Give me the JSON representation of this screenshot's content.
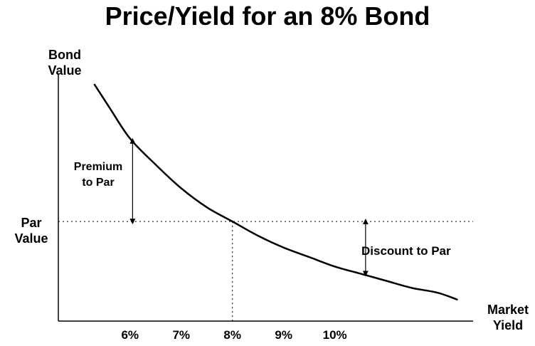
{
  "chart_data": {
    "type": "line",
    "title": "Price/Yield for an 8% Bond",
    "ylabel": [
      "Bond",
      "Value"
    ],
    "xlabel": [
      "Market",
      "Yield"
    ],
    "x_ticks": [
      "6%",
      "7%",
      "8%",
      "9%",
      "10%"
    ],
    "x_tick_values": [
      6,
      7,
      8,
      9,
      10
    ],
    "xlim": [
      4.6,
      12.7
    ],
    "ylim": [
      0,
      100
    ],
    "series": [
      {
        "x": [
          5.3,
          5.6,
          6.0,
          6.5,
          7.0,
          7.5,
          8.0,
          8.5,
          9.0,
          9.5,
          10.0,
          10.5,
          11.0,
          11.5,
          12.0,
          12.4
        ],
        "values": [
          100,
          90,
          77,
          66,
          56,
          48,
          42,
          36,
          31,
          27,
          23,
          20,
          17,
          14,
          12,
          9
        ]
      }
    ],
    "par": {
      "label": [
        "Par",
        "Value"
      ],
      "x": 8,
      "y": 42
    },
    "annotations": [
      {
        "text": [
          "Premium",
          "to Par"
        ],
        "x": 6.05,
        "y_from": 42,
        "y_to": 76
      },
      {
        "text": "Discount to Par",
        "x": 10.6,
        "y_from": 42,
        "y_to": 20
      }
    ],
    "grid": false,
    "legend": "none"
  }
}
